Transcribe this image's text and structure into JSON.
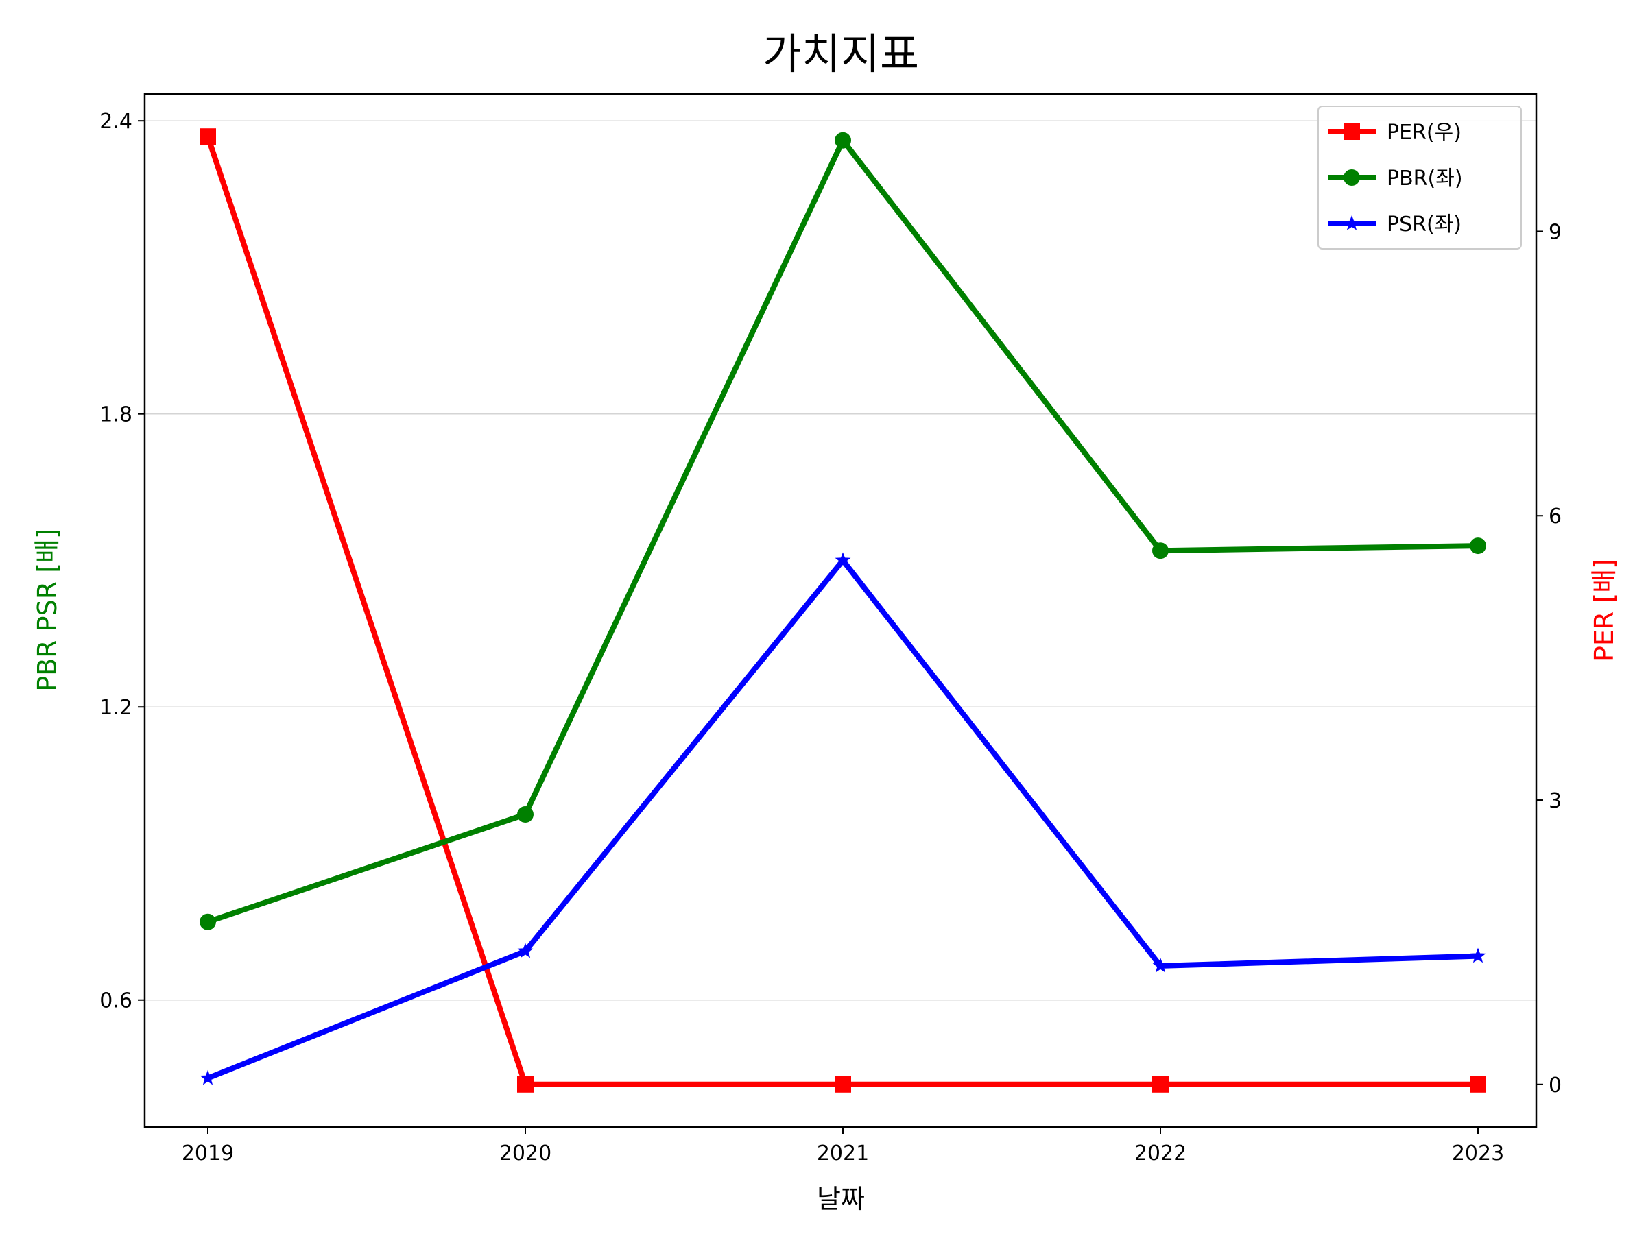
{
  "chart_data": {
    "type": "line",
    "title": "가치지표",
    "xlabel": "날짜",
    "ylabel_left": "PBR PSR [배]",
    "ylabel_right": "PER [배]",
    "categories": [
      "2019",
      "2020",
      "2021",
      "2022",
      "2023"
    ],
    "y_left": {
      "lim": [
        0.34,
        2.455
      ],
      "ticks": [
        0.6,
        1.2,
        1.8,
        2.4
      ],
      "tick_labels": [
        "0.6",
        "1.2",
        "1.8",
        "2.4"
      ],
      "grid": true
    },
    "y_right": {
      "lim": [
        -0.45,
        10.45
      ],
      "ticks": [
        0,
        3,
        6,
        9
      ],
      "tick_labels": [
        "0",
        "3",
        "6",
        "9"
      ],
      "grid": false
    },
    "legend": {
      "placement": "top-right"
    },
    "series": [
      {
        "name": "PER(우)",
        "axis": "right",
        "color": "#ff0000",
        "marker": "square",
        "values": [
          10.0,
          0.0,
          0.0,
          0.0,
          0.0
        ]
      },
      {
        "name": "PBR(좌)",
        "axis": "left",
        "color": "#008000",
        "marker": "circle",
        "values": [
          0.76,
          0.98,
          2.36,
          1.52,
          1.53
        ]
      },
      {
        "name": "PSR(좌)",
        "axis": "left",
        "color": "#0000ff",
        "marker": "star",
        "values": [
          0.44,
          0.7,
          1.5,
          0.67,
          0.69
        ]
      }
    ]
  }
}
